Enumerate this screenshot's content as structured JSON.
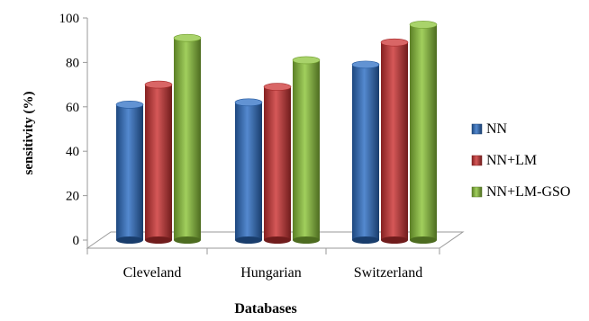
{
  "chart_data": {
    "type": "bar",
    "title": "",
    "xlabel": "Databases",
    "ylabel": "sensitivity (%)",
    "categories": [
      "Cleveland",
      "Hungarian",
      "Switzerland"
    ],
    "ylim": [
      0,
      100
    ],
    "yticks": [
      "0",
      "20",
      "40",
      "60",
      "80",
      "100"
    ],
    "grid": false,
    "legend_position": "right",
    "series": [
      {
        "name": "NN",
        "values": [
          61,
          62,
          79
        ],
        "color": "#2e6fc4"
      },
      {
        "name": "NN+LM",
        "values": [
          70,
          69,
          89
        ],
        "color": "#cc3333"
      },
      {
        "name": "NN+LM-GSO",
        "values": [
          91,
          81,
          97
        ],
        "color": "#8cc43a"
      }
    ]
  }
}
